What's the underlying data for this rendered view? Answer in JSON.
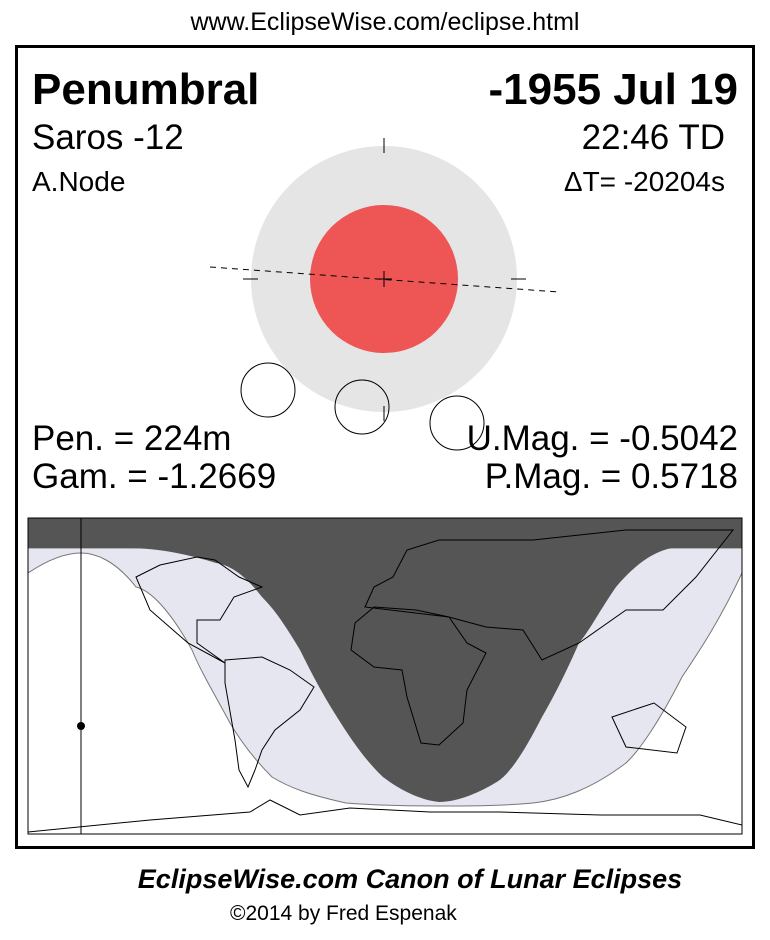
{
  "url": "www.EclipseWise.com/eclipse.html",
  "eclipse_type": "Penumbral",
  "date": "-1955 Jul 19",
  "saros": "Saros -12",
  "time": "22:46 TD",
  "node": "A.Node",
  "delta_t": "ΔT= -20204s",
  "pen_duration": "Pen. = 224m",
  "gamma": "Gam. = -1.2669",
  "umbral_mag": "U.Mag. = -0.5042",
  "penumbral_mag": "P.Mag. = 0.5718",
  "colors": {
    "penumbra": "#e5e5e5",
    "umbra": "#ee5555",
    "night": "#555555",
    "penumbral_visibility": "#e6e6f0"
  },
  "footer": {
    "title": "EclipseWise.com Canon of Lunar Eclipses",
    "copyright": "©2014 by Fred Espenak"
  }
}
